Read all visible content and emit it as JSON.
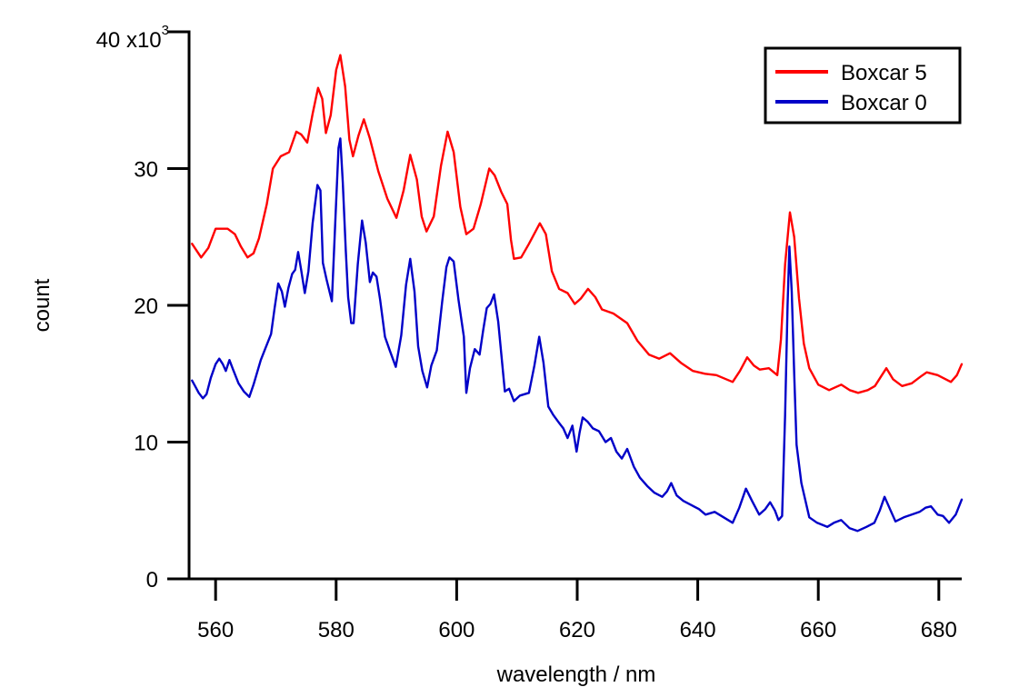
{
  "chart_data": {
    "type": "line",
    "title": "",
    "xlabel": "wavelength / nm",
    "ylabel": "count",
    "y_multiplier_label": "x10",
    "y_multiplier_exponent": "3",
    "xlim": [
      555.6,
      683.8
    ],
    "ylim": [
      0,
      40000
    ],
    "x_ticks": [
      560,
      580,
      600,
      620,
      640,
      660,
      680
    ],
    "x_tick_labels": [
      "560",
      "580",
      "600",
      "620",
      "640",
      "660",
      "680"
    ],
    "y_ticks": [
      0,
      10000,
      20000,
      30000,
      40000
    ],
    "y_tick_labels": [
      "0",
      "10",
      "20",
      "30",
      "40"
    ],
    "grid": false,
    "legend": {
      "placement": "top-right"
    },
    "series": [
      {
        "name": "Boxcar 5",
        "color": "#ff0000",
        "points": [
          [
            556.1,
            24500
          ],
          [
            557.6,
            23500
          ],
          [
            558.8,
            24200
          ],
          [
            560.0,
            25600
          ],
          [
            562.0,
            25600
          ],
          [
            563.2,
            25200
          ],
          [
            564.2,
            24300
          ],
          [
            565.3,
            23500
          ],
          [
            566.3,
            23800
          ],
          [
            567.2,
            24900
          ],
          [
            568.5,
            27400
          ],
          [
            569.5,
            30000
          ],
          [
            570.8,
            30900
          ],
          [
            572.2,
            31200
          ],
          [
            573.4,
            32700
          ],
          [
            574.2,
            32500
          ],
          [
            575.2,
            31900
          ],
          [
            576.1,
            34000
          ],
          [
            577.0,
            35900
          ],
          [
            577.7,
            35100
          ],
          [
            578.3,
            32600
          ],
          [
            579.1,
            33900
          ],
          [
            580.0,
            37200
          ],
          [
            580.7,
            38300
          ],
          [
            581.5,
            36000
          ],
          [
            582.2,
            32100
          ],
          [
            582.8,
            30900
          ],
          [
            583.7,
            32400
          ],
          [
            584.6,
            33600
          ],
          [
            585.6,
            32200
          ],
          [
            587.0,
            29800
          ],
          [
            588.5,
            27800
          ],
          [
            590.0,
            26400
          ],
          [
            591.2,
            28400
          ],
          [
            592.3,
            31000
          ],
          [
            593.4,
            29200
          ],
          [
            594.2,
            26500
          ],
          [
            595.0,
            25400
          ],
          [
            596.2,
            26500
          ],
          [
            597.4,
            30200
          ],
          [
            598.5,
            32700
          ],
          [
            599.5,
            31200
          ],
          [
            600.6,
            27200
          ],
          [
            601.6,
            25200
          ],
          [
            602.8,
            25600
          ],
          [
            604.0,
            27400
          ],
          [
            605.4,
            30000
          ],
          [
            606.3,
            29500
          ],
          [
            607.4,
            28300
          ],
          [
            608.4,
            27400
          ],
          [
            609.0,
            24800
          ],
          [
            609.5,
            23400
          ],
          [
            610.7,
            23500
          ],
          [
            612.0,
            24500
          ],
          [
            613.8,
            26000
          ],
          [
            614.8,
            25200
          ],
          [
            615.8,
            22500
          ],
          [
            617.0,
            21200
          ],
          [
            618.4,
            20900
          ],
          [
            619.6,
            20100
          ],
          [
            620.6,
            20500
          ],
          [
            621.8,
            21200
          ],
          [
            623.0,
            20600
          ],
          [
            624.1,
            19700
          ],
          [
            626.0,
            19400
          ],
          [
            628.3,
            18700
          ],
          [
            630.0,
            17400
          ],
          [
            631.9,
            16400
          ],
          [
            633.6,
            16100
          ],
          [
            635.4,
            16500
          ],
          [
            637.2,
            15800
          ],
          [
            639.2,
            15200
          ],
          [
            641.2,
            15000
          ],
          [
            643.1,
            14900
          ],
          [
            644.7,
            14600
          ],
          [
            645.8,
            14400
          ],
          [
            647.0,
            15200
          ],
          [
            648.2,
            16200
          ],
          [
            649.3,
            15600
          ],
          [
            650.3,
            15300
          ],
          [
            651.8,
            15400
          ],
          [
            653.2,
            14900
          ],
          [
            653.8,
            17500
          ],
          [
            654.5,
            23000
          ],
          [
            655.3,
            26800
          ],
          [
            656.0,
            25000
          ],
          [
            656.8,
            20500
          ],
          [
            657.6,
            17200
          ],
          [
            658.5,
            15400
          ],
          [
            660.0,
            14200
          ],
          [
            661.8,
            13800
          ],
          [
            663.8,
            14200
          ],
          [
            665.2,
            13800
          ],
          [
            666.6,
            13600
          ],
          [
            668.2,
            13800
          ],
          [
            669.4,
            14100
          ],
          [
            670.4,
            14800
          ],
          [
            671.3,
            15400
          ],
          [
            672.4,
            14600
          ],
          [
            673.9,
            14100
          ],
          [
            675.5,
            14300
          ],
          [
            677.0,
            14800
          ],
          [
            678.0,
            15100
          ],
          [
            679.8,
            14900
          ],
          [
            682.0,
            14400
          ],
          [
            683.0,
            14900
          ],
          [
            683.8,
            15700
          ]
        ]
      },
      {
        "name": "Boxcar 0",
        "color": "#0000c8",
        "points": [
          [
            556.1,
            14500
          ],
          [
            556.6,
            14100
          ],
          [
            557.2,
            13600
          ],
          [
            557.9,
            13200
          ],
          [
            558.5,
            13500
          ],
          [
            559.2,
            14700
          ],
          [
            560.0,
            15700
          ],
          [
            560.6,
            16100
          ],
          [
            561.2,
            15700
          ],
          [
            561.7,
            15200
          ],
          [
            562.3,
            16000
          ],
          [
            562.9,
            15300
          ],
          [
            563.8,
            14300
          ],
          [
            564.7,
            13700
          ],
          [
            565.6,
            13300
          ],
          [
            566.3,
            14200
          ],
          [
            567.5,
            16000
          ],
          [
            568.3,
            16900
          ],
          [
            569.2,
            17900
          ],
          [
            569.8,
            19800
          ],
          [
            570.4,
            21600
          ],
          [
            571.0,
            21000
          ],
          [
            571.5,
            19900
          ],
          [
            572.1,
            21300
          ],
          [
            572.7,
            22300
          ],
          [
            573.2,
            22600
          ],
          [
            573.7,
            23900
          ],
          [
            574.2,
            22600
          ],
          [
            574.8,
            20900
          ],
          [
            575.4,
            22500
          ],
          [
            576.1,
            26000
          ],
          [
            576.9,
            28800
          ],
          [
            577.4,
            28400
          ],
          [
            577.8,
            23100
          ],
          [
            578.4,
            21900
          ],
          [
            579.3,
            20300
          ],
          [
            579.9,
            26500
          ],
          [
            580.4,
            31500
          ],
          [
            580.7,
            32200
          ],
          [
            581.1,
            29000
          ],
          [
            581.6,
            24000
          ],
          [
            582.0,
            20600
          ],
          [
            582.5,
            18700
          ],
          [
            582.9,
            18700
          ],
          [
            583.6,
            23000
          ],
          [
            584.3,
            26200
          ],
          [
            584.9,
            24600
          ],
          [
            585.6,
            21700
          ],
          [
            586.1,
            22400
          ],
          [
            586.7,
            22100
          ],
          [
            587.3,
            20400
          ],
          [
            588.1,
            17700
          ],
          [
            588.9,
            16700
          ],
          [
            589.9,
            15500
          ],
          [
            590.8,
            17800
          ],
          [
            591.6,
            21500
          ],
          [
            592.3,
            23400
          ],
          [
            593.0,
            21000
          ],
          [
            593.6,
            17000
          ],
          [
            594.3,
            15200
          ],
          [
            595.1,
            14000
          ],
          [
            595.8,
            15600
          ],
          [
            596.7,
            16700
          ],
          [
            597.6,
            20300
          ],
          [
            598.3,
            22800
          ],
          [
            598.8,
            23500
          ],
          [
            599.5,
            23200
          ],
          [
            600.3,
            20400
          ],
          [
            601.2,
            17700
          ],
          [
            601.6,
            13600
          ],
          [
            602.2,
            15400
          ],
          [
            603.0,
            16800
          ],
          [
            603.8,
            16400
          ],
          [
            604.4,
            18200
          ],
          [
            605.0,
            19800
          ],
          [
            605.6,
            20100
          ],
          [
            606.2,
            20800
          ],
          [
            606.9,
            18800
          ],
          [
            608.0,
            13700
          ],
          [
            608.7,
            13900
          ],
          [
            609.5,
            13000
          ],
          [
            610.5,
            13400
          ],
          [
            612.0,
            13600
          ],
          [
            612.9,
            15600
          ],
          [
            613.7,
            17700
          ],
          [
            614.4,
            15800
          ],
          [
            615.2,
            12600
          ],
          [
            616.0,
            12000
          ],
          [
            617.0,
            11400
          ],
          [
            617.7,
            11000
          ],
          [
            618.4,
            10300
          ],
          [
            619.2,
            11200
          ],
          [
            619.9,
            9300
          ],
          [
            620.4,
            10700
          ],
          [
            620.9,
            11800
          ],
          [
            621.7,
            11500
          ],
          [
            622.6,
            11000
          ],
          [
            623.6,
            10800
          ],
          [
            624.7,
            10000
          ],
          [
            625.6,
            10300
          ],
          [
            626.5,
            9300
          ],
          [
            627.4,
            8800
          ],
          [
            628.3,
            9500
          ],
          [
            629.4,
            8200
          ],
          [
            630.4,
            7400
          ],
          [
            631.6,
            6800
          ],
          [
            632.8,
            6300
          ],
          [
            634.1,
            6000
          ],
          [
            634.9,
            6400
          ],
          [
            635.6,
            7000
          ],
          [
            636.5,
            6100
          ],
          [
            637.6,
            5700
          ],
          [
            638.9,
            5400
          ],
          [
            640.2,
            5100
          ],
          [
            641.3,
            4700
          ],
          [
            642.8,
            4900
          ],
          [
            644.3,
            4500
          ],
          [
            645.8,
            4100
          ],
          [
            646.9,
            5200
          ],
          [
            648.0,
            6600
          ],
          [
            649.0,
            5700
          ],
          [
            650.2,
            4700
          ],
          [
            651.2,
            5100
          ],
          [
            652.0,
            5600
          ],
          [
            652.8,
            5000
          ],
          [
            653.4,
            4300
          ],
          [
            654.0,
            4600
          ],
          [
            654.5,
            12000
          ],
          [
            654.9,
            20000
          ],
          [
            655.2,
            24300
          ],
          [
            655.6,
            21000
          ],
          [
            656.0,
            15000
          ],
          [
            656.4,
            9800
          ],
          [
            657.2,
            7000
          ],
          [
            658.5,
            4500
          ],
          [
            659.8,
            4100
          ],
          [
            661.5,
            3800
          ],
          [
            662.6,
            4100
          ],
          [
            663.8,
            4300
          ],
          [
            665.2,
            3700
          ],
          [
            666.5,
            3500
          ],
          [
            668.0,
            3800
          ],
          [
            669.3,
            4100
          ],
          [
            670.2,
            5000
          ],
          [
            671.0,
            6000
          ],
          [
            671.8,
            5200
          ],
          [
            672.8,
            4200
          ],
          [
            674.2,
            4500
          ],
          [
            675.5,
            4700
          ],
          [
            676.8,
            4900
          ],
          [
            677.8,
            5200
          ],
          [
            678.7,
            5300
          ],
          [
            679.8,
            4700
          ],
          [
            680.7,
            4600
          ],
          [
            681.7,
            4100
          ],
          [
            682.8,
            4700
          ],
          [
            683.8,
            5800
          ]
        ]
      }
    ]
  }
}
